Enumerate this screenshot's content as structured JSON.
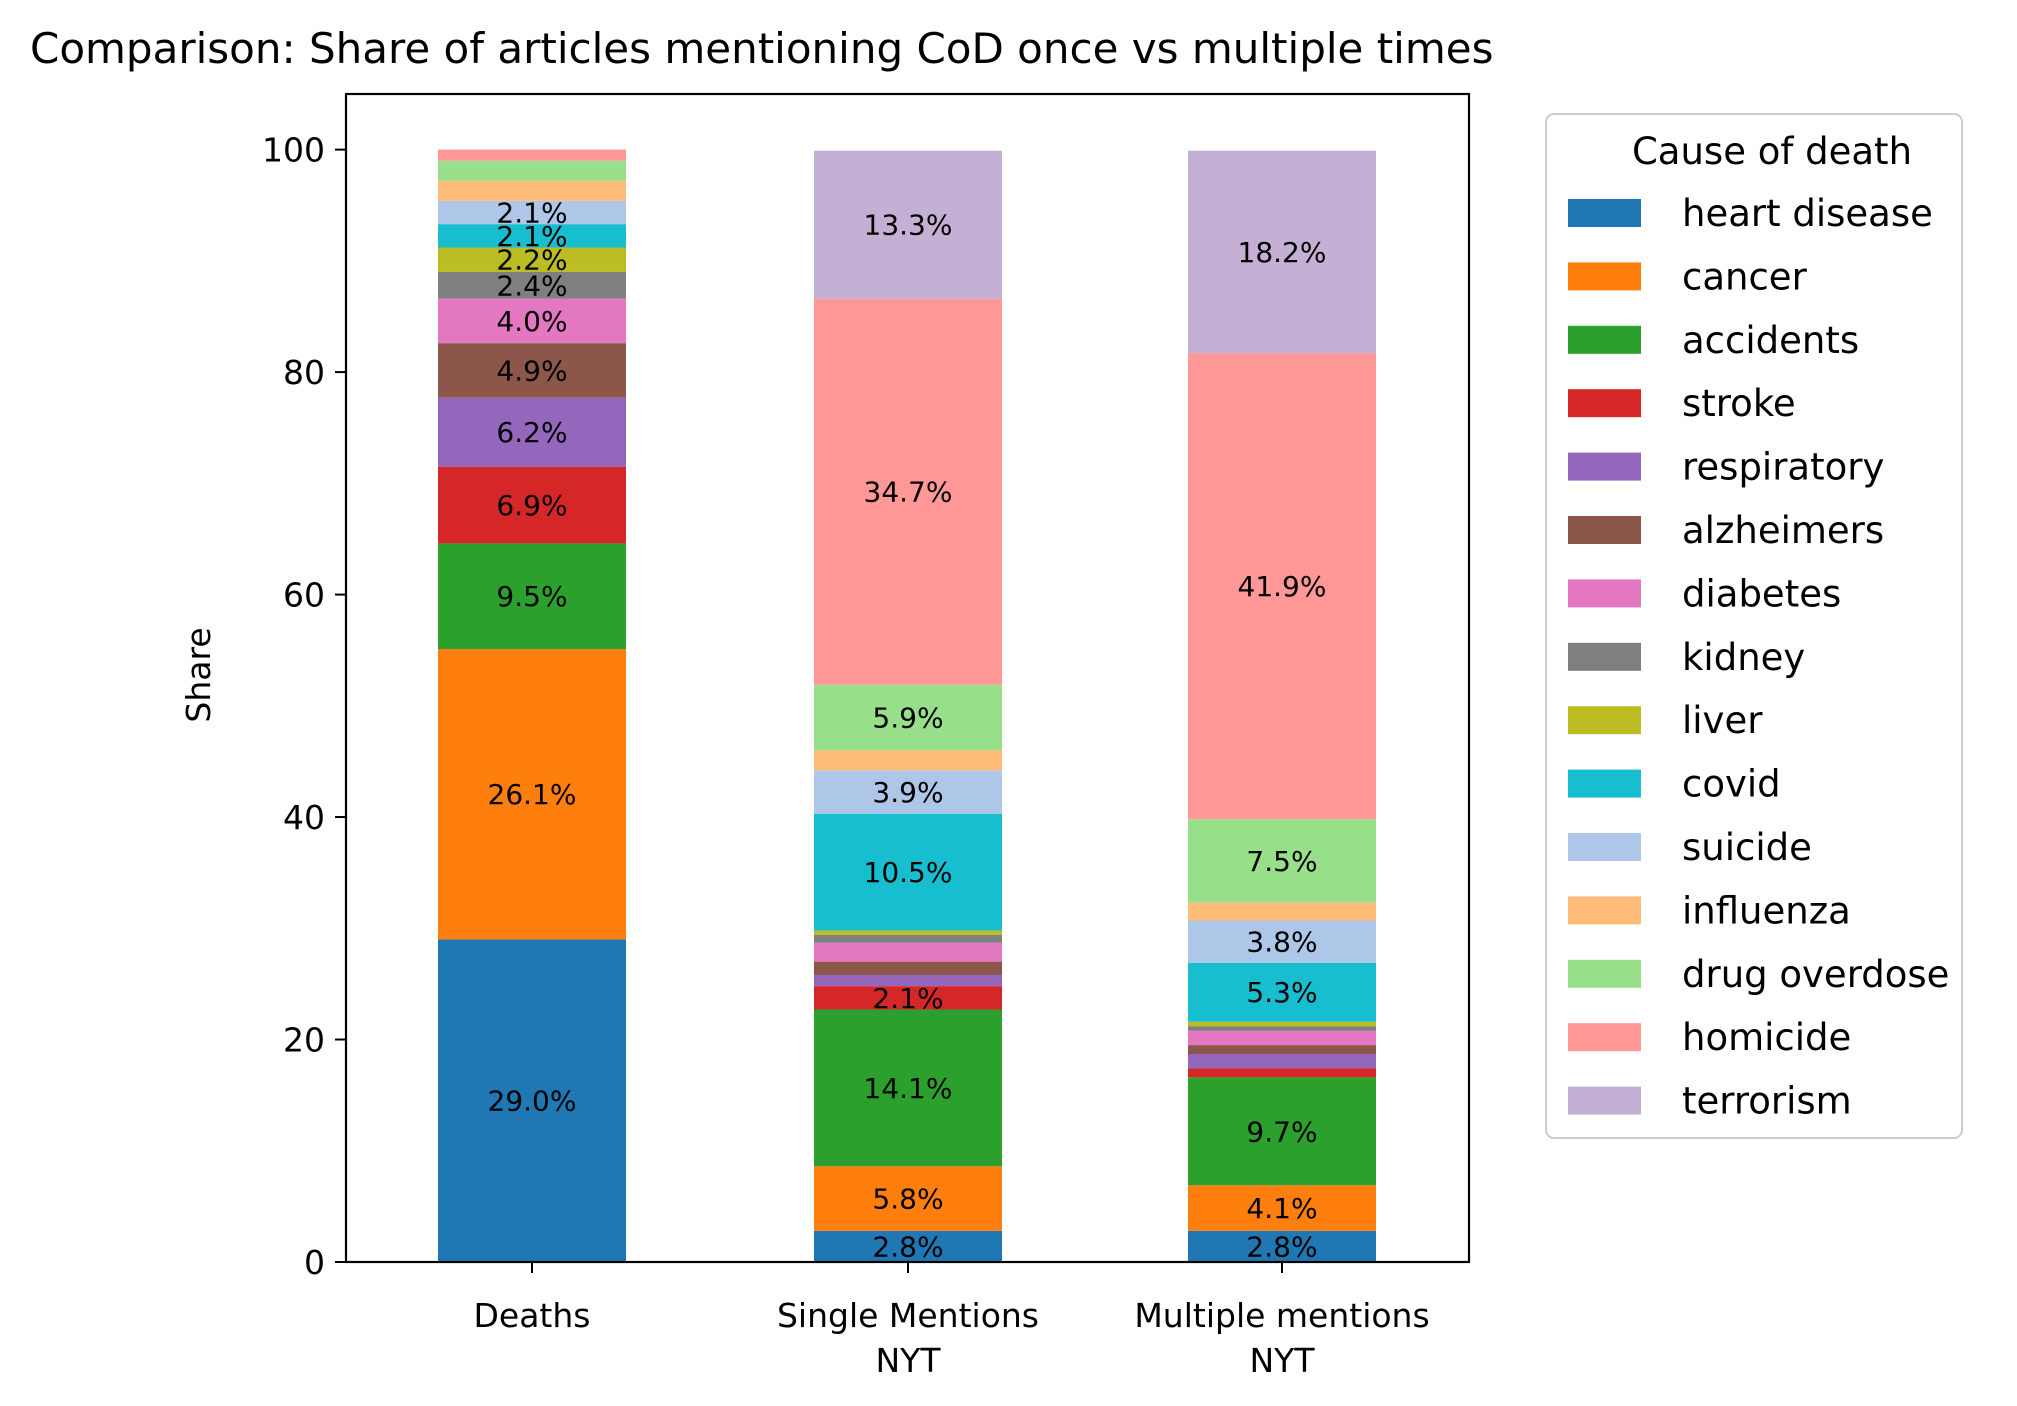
{
  "chart_data": {
    "type": "bar",
    "stacked": true,
    "title": "Comparison: Share of articles mentioning CoD once vs multiple times",
    "xlabel": "",
    "ylabel": "Share",
    "ylim": [
      0,
      105
    ],
    "yticks": [
      0,
      20,
      40,
      60,
      80,
      100
    ],
    "grid": false,
    "legend": {
      "title": "Cause of death",
      "placement": "outside-right"
    },
    "label_threshold": 2.0,
    "categories": [
      [
        "Deaths"
      ],
      [
        "Single Mentions",
        "NYT"
      ],
      [
        "Multiple mentions",
        "NYT"
      ]
    ],
    "series": [
      {
        "name": "heart disease",
        "color": "#1f77b4",
        "values": [
          29.0,
          2.8,
          2.8
        ]
      },
      {
        "name": "cancer",
        "color": "#ff7f0e",
        "values": [
          26.1,
          5.8,
          4.1
        ]
      },
      {
        "name": "accidents",
        "color": "#2ca02c",
        "values": [
          9.5,
          14.1,
          9.7
        ]
      },
      {
        "name": "stroke",
        "color": "#d62728",
        "values": [
          6.9,
          2.1,
          0.8
        ]
      },
      {
        "name": "respiratory",
        "color": "#9467bd",
        "values": [
          6.2,
          1.0,
          1.3
        ]
      },
      {
        "name": "alzheimers",
        "color": "#8c564b",
        "values": [
          4.9,
          1.2,
          0.8
        ]
      },
      {
        "name": "diabetes",
        "color": "#e377c2",
        "values": [
          4.0,
          1.7,
          1.3
        ]
      },
      {
        "name": "kidney",
        "color": "#7f7f7f",
        "values": [
          2.4,
          0.7,
          0.4
        ]
      },
      {
        "name": "liver",
        "color": "#bcbd22",
        "values": [
          2.2,
          0.4,
          0.4
        ]
      },
      {
        "name": "covid",
        "color": "#17becf",
        "values": [
          2.1,
          10.5,
          5.3
        ]
      },
      {
        "name": "suicide",
        "color": "#aec7e8",
        "values": [
          2.1,
          3.9,
          3.8
        ]
      },
      {
        "name": "influenza",
        "color": "#ffbb78",
        "values": [
          1.8,
          1.8,
          1.6
        ]
      },
      {
        "name": "drug overdose",
        "color": "#98df8a",
        "values": [
          1.8,
          5.9,
          7.5
        ]
      },
      {
        "name": "homicide",
        "color": "#ff9896",
        "values": [
          1.0,
          34.7,
          41.9
        ]
      },
      {
        "name": "terrorism",
        "color": "#c5b0d5",
        "values": [
          0.0,
          13.3,
          18.2
        ]
      }
    ]
  }
}
